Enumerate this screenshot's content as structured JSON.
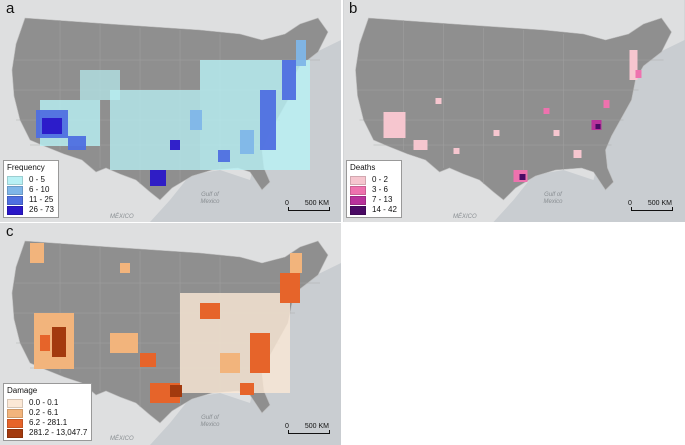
{
  "panels": [
    {
      "letter": "a",
      "legend": {
        "title": "Frequency",
        "items": [
          {
            "label": "0 - 5",
            "color": "#b8f1f5"
          },
          {
            "label": "6 - 10",
            "color": "#7fb6e8"
          },
          {
            "label": "11 - 25",
            "color": "#4f6fe0"
          },
          {
            "label": "26 - 73",
            "color": "#2a17c8"
          }
        ]
      },
      "gulf": "Gulf of\nMexico",
      "mexico": "MÉXICO",
      "scale": {
        "zero": "0",
        "value": "500",
        "unit": "KM"
      }
    },
    {
      "letter": "b",
      "legend": {
        "title": "Deaths",
        "items": [
          {
            "label": "0 - 2",
            "color": "#f6c6cf"
          },
          {
            "label": "3 - 6",
            "color": "#ee72ae"
          },
          {
            "label": "7 - 13",
            "color": "#b8329b"
          },
          {
            "label": "14 - 42",
            "color": "#4a0a64"
          }
        ]
      },
      "gulf": "Gulf of\nMexico",
      "mexico": "MÉXICO",
      "scale": {
        "zero": "0",
        "value": "500",
        "unit": "KM"
      }
    },
    {
      "letter": "c",
      "legend": {
        "title": "Damage",
        "items": [
          {
            "label": "0.0 - 0.1",
            "color": "#fbe8d6"
          },
          {
            "label": "0.2 - 6.1",
            "color": "#f2b47c"
          },
          {
            "label": "6.2 - 281.1",
            "color": "#e6642a"
          },
          {
            "label": "281.2 - 13,047.7",
            "color": "#a33a0e"
          }
        ]
      },
      "gulf": "Gulf of\nMexico",
      "mexico": "MÉXICO",
      "scale": {
        "zero": "0",
        "value": "500",
        "unit": "KM"
      }
    }
  ],
  "colors": {
    "land": "#8f8f8f",
    "county": "#a7a7a7",
    "ocean": "#c9cdd1",
    "basemap": "#dedfe0"
  }
}
